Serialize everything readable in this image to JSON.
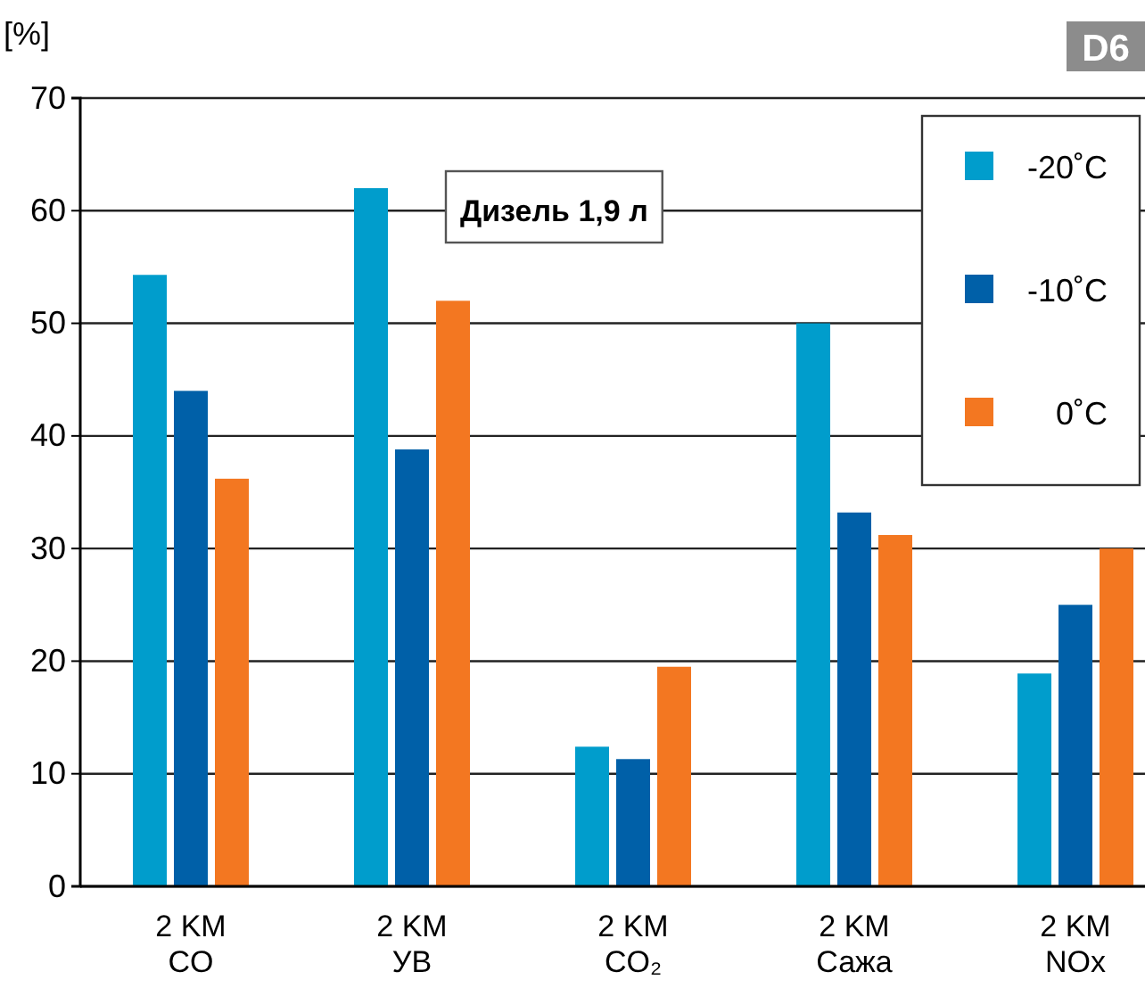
{
  "chart_data": {
    "type": "bar",
    "ylabel": "[%]",
    "categories": [
      "2 KM\nCO",
      "2 KM\nУВ",
      "2 KM\nCO₂",
      "2 KM\nСажа",
      "2 KM\nNOx"
    ],
    "series": [
      {
        "name": "-20˚C",
        "color": "#009dcc",
        "values": [
          54.3,
          62,
          12.4,
          50,
          18.9
        ]
      },
      {
        "name": "-10˚C",
        "color": "#0060a8",
        "values": [
          44,
          38.8,
          11.3,
          33.2,
          25
        ]
      },
      {
        "name": "0˚C",
        "color": "#f37721",
        "values": [
          36.2,
          52,
          19.5,
          31.2,
          30
        ]
      }
    ],
    "ylim": [
      0,
      70
    ],
    "yticks": [
      0,
      10,
      20,
      30,
      40,
      50,
      60,
      70
    ],
    "grid": "y",
    "legend": "top right",
    "annotations": [
      "Дизель 1,9 л",
      "D6"
    ]
  }
}
